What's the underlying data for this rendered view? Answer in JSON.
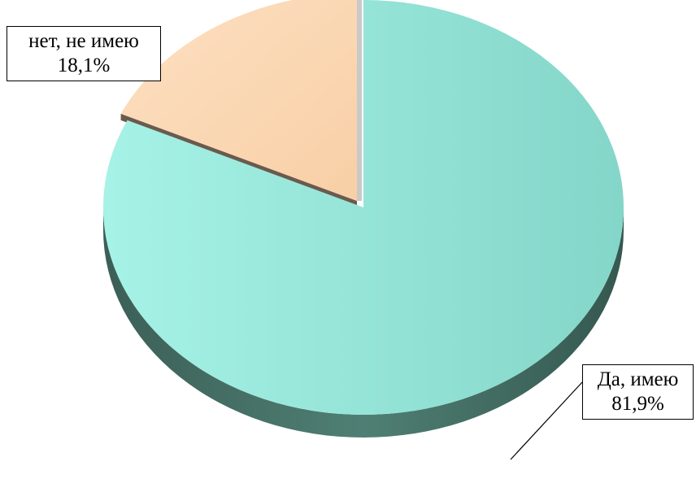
{
  "chart_data": {
    "type": "pie",
    "title": "",
    "slices": [
      {
        "name": "Да, имею",
        "value": 81.9,
        "value_label": "81,9%",
        "color": "#8fdccf",
        "side_color": "#3f6b61"
      },
      {
        "name": "нет, не имею",
        "value": 18.1,
        "value_label": "18,1%",
        "color": "#fbd5b0",
        "side_color": "#6b5a4d",
        "exploded": true
      }
    ],
    "legend": "none",
    "style": "3d"
  }
}
